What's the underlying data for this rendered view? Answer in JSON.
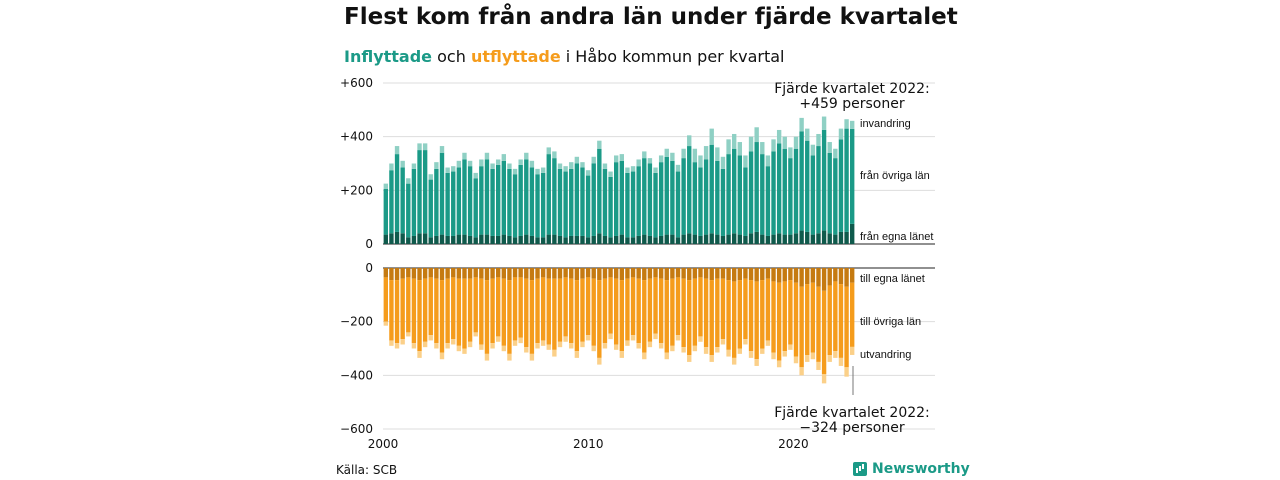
{
  "header": {
    "title": "Flest kom från andra län under fjärde kvartalet",
    "subtitle_in": "Inflyttade",
    "subtitle_mid": " och ",
    "subtitle_out": "utflyttade",
    "subtitle_rest": " i Håbo kommun per kvartal"
  },
  "footer": {
    "source": "Källa: SCB",
    "brand": "Newsworthy"
  },
  "colors": {
    "invandring": "#8fd0c4",
    "fran_ovriga_lan": "#1b9a87",
    "fran_egna_lanet": "#0f5a4c",
    "till_egna_lanet": "#c57a11",
    "till_ovriga_lan": "#f59c1c",
    "utvandring": "#fbd089"
  },
  "chart_data": {
    "type": "bar",
    "stacked": true,
    "x_start_year": 2000,
    "x_end_year": 2022,
    "quarters_per_year": 4,
    "x_ticks": [
      2000,
      2010,
      2020
    ],
    "x_tick_labels": [
      "2000",
      "2010",
      "2020"
    ],
    "y_ticks_top": [
      "+600",
      "+400",
      "+200",
      "0"
    ],
    "y_ticks_bottom": [
      "0",
      "−200",
      "−400",
      "−600"
    ],
    "ylim_top": [
      0,
      600
    ],
    "ylim_bottom": [
      -600,
      0
    ],
    "segments_in": [
      "från egna länet",
      "från övriga län",
      "invandring"
    ],
    "segments_out": [
      "till egna länet",
      "till övriga län",
      "utvandring"
    ],
    "inflow_total": [
      225,
      300,
      365,
      310,
      245,
      300,
      375,
      375,
      260,
      305,
      365,
      285,
      290,
      310,
      340,
      310,
      265,
      315,
      340,
      300,
      315,
      335,
      300,
      280,
      315,
      340,
      310,
      280,
      285,
      360,
      345,
      300,
      290,
      305,
      325,
      305,
      275,
      325,
      385,
      300,
      270,
      330,
      335,
      285,
      290,
      315,
      345,
      320,
      285,
      330,
      355,
      340,
      295,
      355,
      405,
      355,
      330,
      365,
      430,
      360,
      325,
      390,
      410,
      380,
      330,
      400,
      435,
      380,
      330,
      390,
      425,
      400,
      360,
      400,
      470,
      430,
      370,
      410,
      475,
      380,
      355,
      430,
      465,
      459
    ],
    "inflow_egna": [
      35,
      40,
      45,
      40,
      25,
      30,
      40,
      40,
      25,
      30,
      35,
      30,
      30,
      35,
      35,
      30,
      25,
      35,
      35,
      30,
      30,
      35,
      30,
      25,
      30,
      35,
      30,
      25,
      25,
      35,
      35,
      30,
      25,
      30,
      30,
      30,
      25,
      30,
      40,
      30,
      25,
      30,
      35,
      25,
      25,
      30,
      35,
      30,
      25,
      30,
      35,
      35,
      25,
      35,
      40,
      35,
      30,
      35,
      40,
      35,
      30,
      35,
      40,
      35,
      30,
      40,
      45,
      35,
      30,
      35,
      40,
      35,
      35,
      40,
      50,
      45,
      35,
      40,
      50,
      40,
      35,
      45,
      45,
      75
    ],
    "inflow_invandring": [
      20,
      25,
      30,
      25,
      20,
      20,
      25,
      25,
      20,
      25,
      25,
      20,
      20,
      25,
      25,
      20,
      20,
      25,
      25,
      20,
      20,
      25,
      20,
      20,
      20,
      25,
      25,
      20,
      20,
      25,
      25,
      20,
      20,
      25,
      25,
      20,
      20,
      25,
      30,
      20,
      20,
      25,
      25,
      20,
      20,
      25,
      25,
      20,
      20,
      25,
      30,
      30,
      25,
      35,
      40,
      50,
      45,
      50,
      60,
      50,
      45,
      55,
      55,
      50,
      45,
      55,
      55,
      45,
      40,
      45,
      50,
      45,
      40,
      45,
      50,
      45,
      40,
      45,
      50,
      40,
      35,
      40,
      35,
      30
    ],
    "outflow_total": [
      215,
      290,
      300,
      285,
      255,
      300,
      335,
      295,
      270,
      300,
      340,
      300,
      285,
      310,
      320,
      295,
      255,
      305,
      345,
      300,
      275,
      310,
      345,
      290,
      280,
      315,
      345,
      300,
      290,
      305,
      330,
      295,
      275,
      300,
      335,
      295,
      270,
      310,
      360,
      300,
      265,
      305,
      335,
      290,
      270,
      300,
      340,
      295,
      265,
      300,
      340,
      310,
      270,
      315,
      350,
      310,
      275,
      320,
      350,
      315,
      285,
      330,
      360,
      320,
      285,
      335,
      365,
      320,
      290,
      340,
      370,
      330,
      305,
      355,
      400,
      350,
      340,
      380,
      430,
      350,
      335,
      365,
      405,
      324
    ],
    "outflow_egna": [
      35,
      45,
      45,
      40,
      35,
      40,
      45,
      40,
      35,
      40,
      45,
      40,
      35,
      40,
      40,
      40,
      35,
      40,
      45,
      40,
      35,
      40,
      45,
      35,
      35,
      40,
      45,
      40,
      35,
      40,
      40,
      40,
      35,
      40,
      45,
      40,
      35,
      40,
      45,
      40,
      35,
      40,
      45,
      40,
      35,
      40,
      45,
      40,
      35,
      40,
      45,
      40,
      35,
      40,
      45,
      40,
      35,
      40,
      45,
      40,
      40,
      45,
      50,
      45,
      40,
      45,
      50,
      45,
      40,
      50,
      55,
      50,
      45,
      55,
      70,
      60,
      55,
      70,
      85,
      65,
      50,
      60,
      70,
      55
    ],
    "outflow_utvandring": [
      15,
      20,
      20,
      20,
      15,
      20,
      25,
      20,
      20,
      20,
      25,
      20,
      20,
      20,
      20,
      20,
      15,
      20,
      25,
      20,
      20,
      20,
      25,
      20,
      20,
      20,
      25,
      20,
      20,
      20,
      25,
      20,
      20,
      20,
      25,
      20,
      20,
      20,
      25,
      20,
      20,
      20,
      25,
      20,
      20,
      20,
      25,
      20,
      20,
      20,
      25,
      20,
      20,
      20,
      25,
      20,
      20,
      25,
      25,
      20,
      20,
      25,
      25,
      20,
      20,
      25,
      25,
      20,
      20,
      25,
      25,
      20,
      20,
      25,
      30,
      25,
      25,
      30,
      35,
      25,
      25,
      30,
      35,
      30
    ],
    "annotation_top_line1": "Fjärde kvartalet 2022:",
    "annotation_top_line2": "+459 personer",
    "annotation_bottom_line1": "Fjärde kvartalet 2022:",
    "annotation_bottom_line2": "−324 personer"
  }
}
